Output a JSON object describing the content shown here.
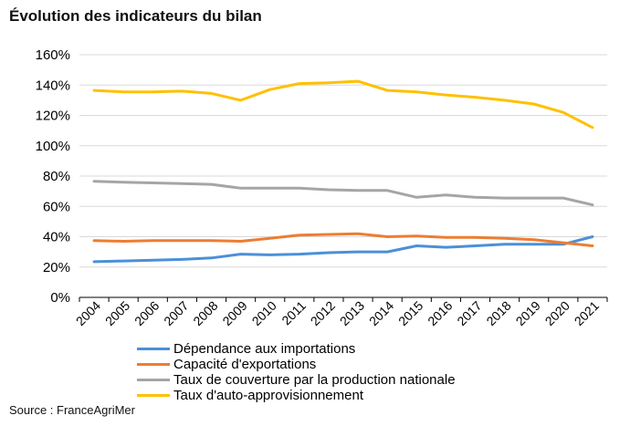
{
  "title": "Évolution des indicateurs du bilan",
  "source": "Source : FranceAgriMer",
  "chart_data": {
    "type": "line",
    "title": "Évolution des indicateurs du bilan",
    "xlabel": "",
    "ylabel": "",
    "categories": [
      "2004",
      "2005",
      "2006",
      "2007",
      "2008",
      "2009",
      "2010",
      "2011",
      "2012",
      "2013",
      "2014",
      "2015",
      "2016",
      "2017",
      "2018",
      "2019",
      "2020",
      "2021"
    ],
    "ylim": [
      0,
      160
    ],
    "yticks": [
      0,
      20,
      40,
      60,
      80,
      100,
      120,
      140,
      160
    ],
    "ytick_labels": [
      "0%",
      "20%",
      "40%",
      "60%",
      "80%",
      "100%",
      "120%",
      "140%",
      "160%"
    ],
    "grid": true,
    "legend_position": "bottom",
    "series": [
      {
        "name": "Dépendance aux importations",
        "color": "#4a90d9",
        "values": [
          23.5,
          24,
          24.5,
          25,
          26,
          28.5,
          28,
          28.5,
          29.5,
          30,
          30,
          34,
          33,
          34,
          35,
          35,
          35,
          40
        ]
      },
      {
        "name": "Capacité d'exportations",
        "color": "#ed7d31",
        "values": [
          37.5,
          37,
          37.5,
          37.5,
          37.5,
          37,
          39,
          41,
          41.5,
          42,
          40,
          40.5,
          39.5,
          39.5,
          39,
          38,
          36,
          34
        ]
      },
      {
        "name": "Taux de couverture par la production nationale",
        "color": "#a5a5a5",
        "values": [
          76.5,
          76,
          75.5,
          75,
          74.5,
          72,
          72,
          72,
          71,
          70.5,
          70.5,
          66,
          67.5,
          66,
          65.5,
          65.5,
          65.5,
          61
        ]
      },
      {
        "name": "Taux d'auto-approvisionnement",
        "color": "#ffc000",
        "values": [
          136.5,
          135.5,
          135.5,
          136,
          134.5,
          130,
          137,
          141,
          141.5,
          142.5,
          136.5,
          135.5,
          133.5,
          132,
          130,
          127.5,
          122,
          112
        ]
      }
    ]
  }
}
